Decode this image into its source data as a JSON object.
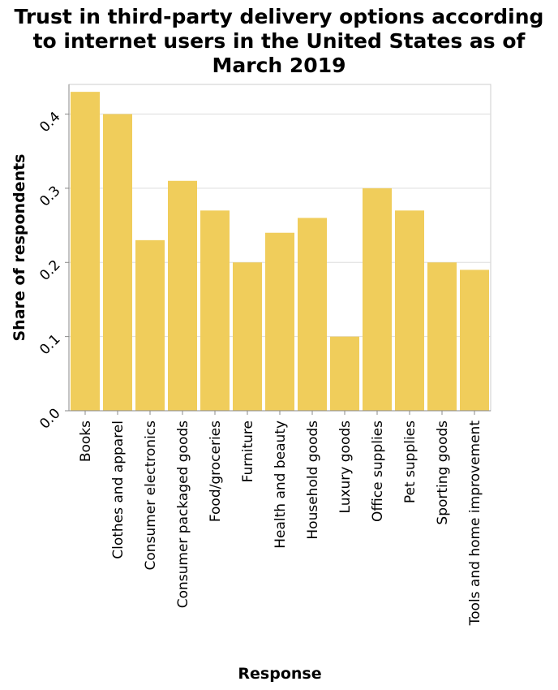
{
  "chart_data": {
    "type": "bar",
    "title": "Trust in third-party delivery options according to internet users in the United States as of March 2019",
    "xlabel": "Response",
    "ylabel": "Share of respondents",
    "categories": [
      "Books",
      "Clothes and apparel",
      "Consumer electronics",
      "Consumer packaged goods",
      "Food/groceries",
      "Furniture",
      "Health and beauty",
      "Household goods",
      "Luxury goods",
      "Office supplies",
      "Pet supplies",
      "Sporting goods",
      "Tools and home improvement"
    ],
    "values": [
      0.43,
      0.4,
      0.23,
      0.31,
      0.27,
      0.2,
      0.24,
      0.26,
      0.1,
      0.3,
      0.27,
      0.2,
      0.19
    ],
    "yticks": [
      "0.0",
      "0.1",
      "0.2",
      "0.3",
      "0.4"
    ],
    "ylim": [
      0,
      0.44
    ],
    "grid": true,
    "bar_color": "#f0cd5b"
  }
}
